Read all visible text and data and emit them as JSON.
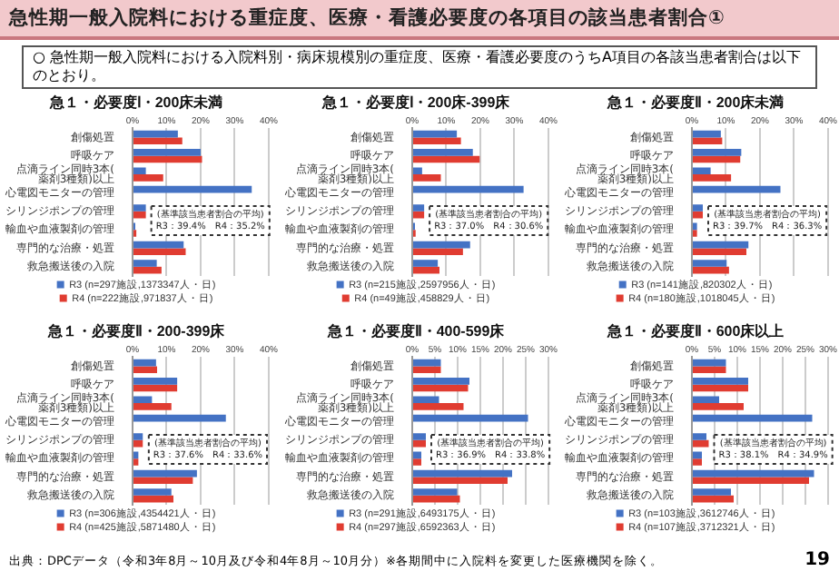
{
  "chart_data": [
    {
      "type": "other",
      "title": "急性期一般入院料における重症度、医療・看護必要度の各項目の該当患者割合①",
      "annotations": [
        "○ 急性期一般入院料における入院料別・病床規模別の重症度、医療・看護必要度のうちA項目の各該当患者割合は以下のとおり。"
      ]
    },
    {
      "type": "bar",
      "orientation": "horizontal",
      "title": "急１・必要度Ⅰ・200床未満",
      "categories": [
        "創傷処置",
        "呼吸ケア",
        "点滴ライン同時3本(薬剤3種類)以上",
        "心電図モニターの管理",
        "シリンジポンプの管理",
        "輸血や血液製剤の管理",
        "専門的な治療・処置",
        "救急搬送後の入院"
      ],
      "series": [
        {
          "name": "R3 (n=297施設,1373347人・日)",
          "color": "#4472c4",
          "values": [
            13.3,
            20,
            3.9,
            35,
            3.9,
            0.8,
            15,
            7.1
          ]
        },
        {
          "name": "R4 (n=222施設,971837人・日)",
          "color": "#e03c31",
          "values": [
            14.6,
            20.4,
            9,
            null,
            3.9,
            1.1,
            15.6,
            8.5
          ]
        }
      ],
      "xlim": [
        0,
        40
      ],
      "xticks": [
        {
          "value": 0,
          "label": "0%"
        },
        {
          "value": 10,
          "label": "10%"
        },
        {
          "value": 20,
          "label": "20%"
        },
        {
          "value": 30,
          "label": "30%"
        },
        {
          "value": 40,
          "label": "40%"
        }
      ],
      "grid": "x",
      "legend": "bottom",
      "annotations": [
        "(基準該当患者割合の平均)",
        "R3：39.4%　R4：35.2%"
      ]
    },
    {
      "type": "bar",
      "orientation": "horizontal",
      "title": "急１・必要度Ⅰ・200床-399床",
      "categories": [
        "創傷処置",
        "呼吸ケア",
        "点滴ライン同時3本(薬剤3種類)以上",
        "心電図モニターの管理",
        "シリンジポンプの管理",
        "輸血や血液製剤の管理",
        "専門的な治療・処置",
        "救急搬送後の入院"
      ],
      "series": [
        {
          "name": "R3 (n=215施設,2597956人・日)",
          "color": "#4472c4",
          "values": [
            13.1,
            17.8,
            2.9,
            32.7,
            3.5,
            0.8,
            17,
            7.5
          ]
        },
        {
          "name": "R4 (n=49施設,458829人・日)",
          "color": "#e03c31",
          "values": [
            14.3,
            19.8,
            8.4,
            null,
            3.5,
            1,
            14.9,
            8
          ]
        }
      ],
      "xlim": [
        0,
        40
      ],
      "xticks": [
        {
          "value": 0,
          "label": "0%"
        },
        {
          "value": 10,
          "label": "10%"
        },
        {
          "value": 20,
          "label": "20%"
        },
        {
          "value": 30,
          "label": "30%"
        },
        {
          "value": 40,
          "label": "40%"
        }
      ],
      "grid": "x",
      "legend": "bottom",
      "annotations": [
        "(基準該当患者割合の平均)",
        "R3：37.0%　R4：30.6%"
      ]
    },
    {
      "type": "bar",
      "orientation": "horizontal",
      "title": "急１・必要度Ⅱ・200床未満",
      "categories": [
        "創傷処置",
        "呼吸ケア",
        "点滴ライン同時3本(薬剤3種類)以上",
        "心電図モニターの管理",
        "シリンジポンプの管理",
        "輸血や血液製剤の管理",
        "専門的な治療・処置",
        "救急搬送後の入院"
      ],
      "series": [
        {
          "name": "R3 (n=141施設,820302人・日)",
          "color": "#4472c4",
          "values": [
            8.5,
            14.5,
            5.5,
            26,
            3.2,
            1.5,
            16.6,
            10.2
          ]
        },
        {
          "name": "R4 (n=180施設,1018045人・日)",
          "color": "#e03c31",
          "values": [
            8.9,
            14.2,
            11.5,
            null,
            3.2,
            1.5,
            16,
            10.9
          ]
        }
      ],
      "xlim": [
        0,
        40
      ],
      "xticks": [
        {
          "value": 0,
          "label": "0%"
        },
        {
          "value": 10,
          "label": "10%"
        },
        {
          "value": 20,
          "label": "20%"
        },
        {
          "value": 30,
          "label": "30%"
        },
        {
          "value": 40,
          "label": "40%"
        }
      ],
      "grid": "x",
      "legend": "bottom",
      "annotations": [
        "(基準該当患者割合の平均)",
        "R3：39.7%　R4：36.3%"
      ]
    },
    {
      "type": "bar",
      "orientation": "horizontal",
      "title": "急１・必要度Ⅱ・200-399床",
      "categories": [
        "創傷処置",
        "呼吸ケア",
        "点滴ライン同時3本(薬剤3種類)以上",
        "心電図モニターの管理",
        "シリンジポンプの管理",
        "輸血や血液製剤の管理",
        "専門的な治療・処置",
        "救急搬送後の入院"
      ],
      "series": [
        {
          "name": "R3 (n=306施設,4354421人・日)",
          "color": "#4472c4",
          "values": [
            6.9,
            13.1,
            5.7,
            27.4,
            3,
            1.7,
            18.9,
            11.4
          ]
        },
        {
          "name": "R4 (n=425施設,5871480人・日)",
          "color": "#e03c31",
          "values": [
            7.2,
            13.1,
            11.4,
            null,
            3,
            1.7,
            17.7,
            12
          ]
        }
      ],
      "xlim": [
        0,
        40
      ],
      "xticks": [
        {
          "value": 0,
          "label": "0%"
        },
        {
          "value": 10,
          "label": "10%"
        },
        {
          "value": 20,
          "label": "20%"
        },
        {
          "value": 30,
          "label": "30%"
        },
        {
          "value": 40,
          "label": "40%"
        }
      ],
      "grid": "x",
      "legend": "bottom",
      "annotations": [
        "(基準該当患者割合の平均)",
        "R3：37.6%　R4：33.6%"
      ]
    },
    {
      "type": "bar",
      "orientation": "horizontal",
      "title": "急１・必要度Ⅱ・400-599床",
      "categories": [
        "創傷処置",
        "呼吸ケア",
        "点滴ライン同時3本(薬剤3種類)以上",
        "心電図モニターの管理",
        "シリンジポンプの管理",
        "輸血や血液製剤の管理",
        "専門的な治療・処置",
        "救急搬送後の入院"
      ],
      "series": [
        {
          "name": "R3 (n=291施設,6493175人・日)",
          "color": "#4472c4",
          "values": [
            6.3,
            12.6,
            5.9,
            25.5,
            3,
            2,
            22,
            9.9
          ]
        },
        {
          "name": "R4 (n=297施設,6592363人・日)",
          "color": "#e03c31",
          "values": [
            6.3,
            12.3,
            11.3,
            null,
            3,
            2,
            21,
            10.5
          ]
        }
      ],
      "xlim": [
        0,
        30
      ],
      "xticks": [
        {
          "value": 0,
          "label": "0%"
        },
        {
          "value": 5,
          "label": "5%"
        },
        {
          "value": 10,
          "label": "10%"
        },
        {
          "value": 15,
          "label": "15%"
        },
        {
          "value": 20,
          "label": "20%"
        },
        {
          "value": 25,
          "label": "25%"
        },
        {
          "value": 30,
          "label": "30%"
        }
      ],
      "grid": "x",
      "legend": "bottom",
      "annotations": [
        "(基準該当患者割合の平均)",
        "R3：36.9%　R4：33.8%"
      ]
    },
    {
      "type": "bar",
      "orientation": "horizontal",
      "title": "急１・必要度Ⅱ・600床以上",
      "categories": [
        "創傷処置",
        "呼吸ケア",
        "点滴ライン同時3本(薬剤3種類)以上",
        "心電図モニターの管理",
        "シリンジポンプの管理",
        "輸血や血液製剤の管理",
        "専門的な治療・処置",
        "救急搬送後の入院"
      ],
      "series": [
        {
          "name": "R3 (n=103施設,3612746人・日)",
          "color": "#4472c4",
          "values": [
            7.5,
            12.4,
            6,
            26.5,
            3.2,
            2.2,
            26.9,
            8.6
          ]
        },
        {
          "name": "R4 (n=107施設,3712321人・日)",
          "color": "#e03c31",
          "values": [
            7.5,
            12.4,
            11.4,
            null,
            3.7,
            2.2,
            25.8,
            9.2
          ]
        }
      ],
      "xlim": [
        0,
        30
      ],
      "xticks": [
        {
          "value": 0,
          "label": "0%"
        },
        {
          "value": 5,
          "label": "5%"
        },
        {
          "value": 10,
          "label": "10%"
        },
        {
          "value": 15,
          "label": "15%"
        },
        {
          "value": 20,
          "label": "20%"
        },
        {
          "value": 25,
          "label": "25%"
        },
        {
          "value": 30,
          "label": "30%"
        }
      ],
      "grid": "x",
      "legend": "bottom",
      "annotations": [
        "(基準該当患者割合の平均)",
        "R3：38.1%　R4：34.9%"
      ]
    },
    {
      "type": "other",
      "annotations": [
        "出典：DPCデータ（令和3年8月～10月及び令和4年8月～10月分）※各期間中に入院料を変更した医療機関を除く。",
        "19"
      ]
    }
  ]
}
